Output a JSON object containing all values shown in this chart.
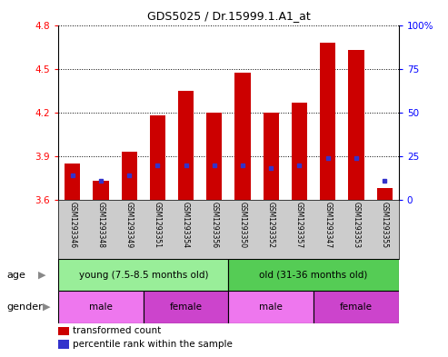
{
  "title": "GDS5025 / Dr.15999.1.A1_at",
  "samples": [
    "GSM1293346",
    "GSM1293348",
    "GSM1293349",
    "GSM1293351",
    "GSM1293354",
    "GSM1293356",
    "GSM1293350",
    "GSM1293352",
    "GSM1293357",
    "GSM1293347",
    "GSM1293353",
    "GSM1293355"
  ],
  "transformed_count": [
    3.85,
    3.73,
    3.93,
    4.18,
    4.35,
    4.2,
    4.47,
    4.2,
    4.27,
    4.68,
    4.63,
    3.68
  ],
  "percentile_y": [
    3.77,
    3.73,
    3.77,
    3.84,
    3.84,
    3.84,
    3.84,
    3.82,
    3.84,
    3.89,
    3.89,
    3.73
  ],
  "ylim": [
    3.6,
    4.8
  ],
  "y2lim": [
    0,
    100
  ],
  "yticks": [
    3.6,
    3.9,
    4.2,
    4.5,
    4.8
  ],
  "y2ticks": [
    0,
    25,
    50,
    75,
    100
  ],
  "bar_color": "#cc0000",
  "blue_color": "#3333cc",
  "bar_bottom": 3.6,
  "age_groups": [
    {
      "label": "young (7.5-8.5 months old)",
      "start": 0,
      "end": 6,
      "color": "#99ee99"
    },
    {
      "label": "old (31-36 months old)",
      "start": 6,
      "end": 12,
      "color": "#55cc55"
    }
  ],
  "gender_groups": [
    {
      "label": "male",
      "start": 0,
      "end": 3,
      "color": "#ee77ee"
    },
    {
      "label": "female",
      "start": 3,
      "end": 6,
      "color": "#cc44cc"
    },
    {
      "label": "male",
      "start": 6,
      "end": 9,
      "color": "#ee77ee"
    },
    {
      "label": "female",
      "start": 9,
      "end": 12,
      "color": "#cc44cc"
    }
  ],
  "sample_bg_color": "#cccccc",
  "legend_red_label": "transformed count",
  "legend_blue_label": "percentile rank within the sample",
  "age_label": "age",
  "gender_label": "gender",
  "grid_yticks": [
    3.9,
    4.2,
    4.5,
    4.8
  ]
}
